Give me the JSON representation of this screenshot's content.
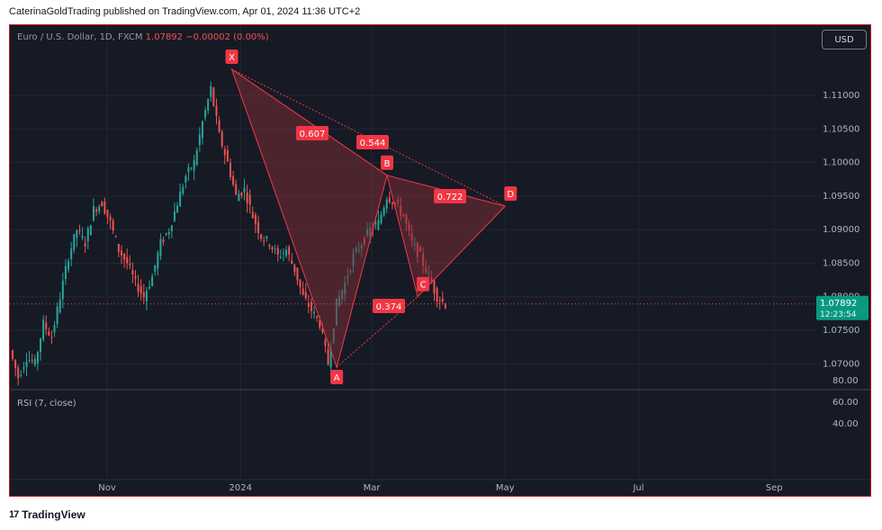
{
  "publish_line": "CaterinaGoldTrading published on TradingView.com, Apr 01, 2024 11:36 UTC+2",
  "footer": {
    "logo_icon": "tradingview-logo-icon",
    "brand": "TradingView"
  },
  "toolbar": {
    "currency_button": "USD"
  },
  "legend": {
    "symbol": "Euro / U.S. Dollar, 1D, FXCM",
    "price": "1.07892",
    "change": "−0.00002 (0.00%)"
  },
  "rsi": {
    "label": "RSI (7, close)",
    "ticks": [
      "80.00",
      "60.00",
      "40.00"
    ]
  },
  "price_labels": {
    "last": "1.07892",
    "countdown": "12:23:54"
  },
  "colors": {
    "up": "#26a69a",
    "down": "#ef5350",
    "pattern": "#f23645",
    "pattern_fill": "#7a2e37",
    "wave": "#9c27b0",
    "background": "#161a25"
  },
  "chart_data": {
    "type": "candlestick",
    "ylim": [
      1.0695,
      1.1135
    ],
    "y_ticks": [
      "1.11000",
      "1.10500",
      "1.10000",
      "1.09500",
      "1.09000",
      "1.08500",
      "1.08000",
      "1.07500",
      "1.07000"
    ],
    "x_ticks": [
      "Nov",
      "2024",
      "Mar",
      "May",
      "Jul",
      "Sep"
    ],
    "price_path": [
      1.072,
      1.068,
      1.071,
      1.07,
      1.076,
      1.074,
      1.08,
      1.086,
      1.09,
      1.088,
      1.093,
      1.094,
      1.091,
      1.087,
      1.085,
      1.082,
      1.08,
      1.083,
      1.088,
      1.09,
      1.094,
      1.098,
      1.1,
      1.106,
      1.111,
      1.104,
      1.1,
      1.095,
      1.096,
      1.092,
      1.089,
      1.088,
      1.086,
      1.087,
      1.084,
      1.08,
      1.078,
      1.076,
      1.07,
      1.079,
      1.082,
      1.086,
      1.088,
      1.09,
      1.091,
      1.095,
      1.094,
      1.092,
      1.088,
      1.086,
      1.083,
      1.08,
      1.0789
    ],
    "harmonic_pattern": {
      "points": [
        {
          "label": "X",
          "x": "2023-12-28",
          "y": 1.1139
        },
        {
          "label": "A",
          "x": "2024-02-14",
          "y": 1.0695
        },
        {
          "label": "B",
          "x": "2024-03-08",
          "y": 1.0981
        },
        {
          "label": "C",
          "x": "2024-03-22",
          "y": 1.08
        },
        {
          "label": "D",
          "x": "2024-05-01",
          "y": 1.0935
        }
      ],
      "ratios": [
        "0.607",
        "0.544",
        "0.722",
        "0.374"
      ]
    }
  }
}
